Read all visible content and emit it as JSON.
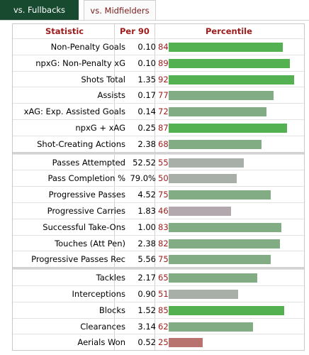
{
  "tabs": [
    {
      "label": "vs. Fullbacks",
      "active": true
    },
    {
      "label": "vs. Midfielders",
      "active": false
    }
  ],
  "header": {
    "statistic": "Statistic",
    "per90": "Per 90",
    "percentile": "Percentile"
  },
  "colors": {
    "tab_active": "#174a2e",
    "header_text": "#9e1b1b",
    "bar_elite": "#54b152",
    "bar_good": "#82ad84",
    "bar_average": "#a8aea8",
    "bar_below": "#b3a8ad",
    "bar_poor": "#b8736e"
  },
  "groups": [
    {
      "rows": [
        {
          "stat": "Non-Penalty Goals",
          "per90": "0.10",
          "percentile": 84
        },
        {
          "stat": "npxG: Non-Penalty xG",
          "per90": "0.10",
          "percentile": 89
        },
        {
          "stat": "Shots Total",
          "per90": "1.35",
          "percentile": 92
        },
        {
          "stat": "Assists",
          "per90": "0.17",
          "percentile": 77
        },
        {
          "stat": "xAG: Exp. Assisted Goals",
          "per90": "0.14",
          "percentile": 72
        },
        {
          "stat": "npxG + xAG",
          "per90": "0.25",
          "percentile": 87
        },
        {
          "stat": "Shot-Creating Actions",
          "per90": "2.38",
          "percentile": 68
        }
      ]
    },
    {
      "rows": [
        {
          "stat": "Passes Attempted",
          "per90": "52.52",
          "percentile": 55
        },
        {
          "stat": "Pass Completion %",
          "per90": "79.0%",
          "percentile": 50
        },
        {
          "stat": "Progressive Passes",
          "per90": "4.52",
          "percentile": 75
        },
        {
          "stat": "Progressive Carries",
          "per90": "1.83",
          "percentile": 46
        },
        {
          "stat": "Successful Take-Ons",
          "per90": "1.00",
          "percentile": 83
        },
        {
          "stat": "Touches (Att Pen)",
          "per90": "2.38",
          "percentile": 82
        },
        {
          "stat": "Progressive Passes Rec",
          "per90": "5.56",
          "percentile": 75
        }
      ]
    },
    {
      "rows": [
        {
          "stat": "Tackles",
          "per90": "2.17",
          "percentile": 65
        },
        {
          "stat": "Interceptions",
          "per90": "0.90",
          "percentile": 51
        },
        {
          "stat": "Blocks",
          "per90": "1.52",
          "percentile": 85
        },
        {
          "stat": "Clearances",
          "per90": "3.14",
          "percentile": 62
        },
        {
          "stat": "Aerials Won",
          "per90": "0.52",
          "percentile": 25
        }
      ]
    }
  ]
}
